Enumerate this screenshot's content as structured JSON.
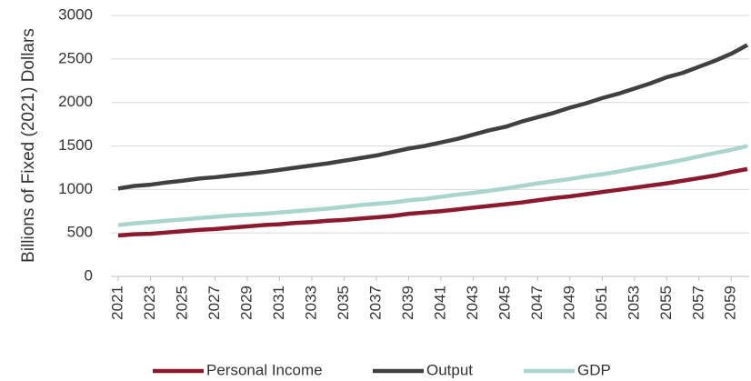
{
  "chart_data": {
    "type": "line",
    "y_label": "Billions of Fixed (2021) Dollars",
    "x": [
      2021,
      2022,
      2023,
      2024,
      2025,
      2026,
      2027,
      2028,
      2029,
      2030,
      2031,
      2032,
      2033,
      2034,
      2035,
      2036,
      2037,
      2038,
      2039,
      2040,
      2041,
      2042,
      2043,
      2044,
      2045,
      2046,
      2047,
      2048,
      2049,
      2050,
      2051,
      2052,
      2053,
      2054,
      2055,
      2056,
      2057,
      2058,
      2059,
      2060
    ],
    "xlim": [
      2021,
      2060
    ],
    "xticks": [
      2021,
      2023,
      2025,
      2027,
      2029,
      2031,
      2033,
      2035,
      2037,
      2039,
      2041,
      2043,
      2045,
      2047,
      2049,
      2051,
      2053,
      2055,
      2057,
      2059
    ],
    "ylim": [
      0,
      3000
    ],
    "yticks": [
      0,
      500,
      1000,
      1500,
      2000,
      2500,
      3000
    ],
    "grid": true,
    "legend": "bottom",
    "series": [
      {
        "name": "Personal Income",
        "color": "#8b1a2e",
        "values": [
          470,
          485,
          490,
          505,
          520,
          535,
          545,
          560,
          575,
          590,
          600,
          615,
          625,
          640,
          650,
          665,
          680,
          695,
          720,
          735,
          750,
          770,
          790,
          810,
          830,
          850,
          875,
          900,
          920,
          945,
          970,
          995,
          1020,
          1045,
          1070,
          1100,
          1130,
          1160,
          1200,
          1235
        ]
      },
      {
        "name": "Output",
        "color": "#404040",
        "values": [
          1010,
          1040,
          1055,
          1080,
          1100,
          1125,
          1140,
          1160,
          1180,
          1200,
          1225,
          1250,
          1275,
          1300,
          1330,
          1360,
          1390,
          1430,
          1470,
          1500,
          1540,
          1580,
          1630,
          1680,
          1720,
          1780,
          1830,
          1880,
          1940,
          1990,
          2050,
          2100,
          2160,
          2220,
          2290,
          2340,
          2410,
          2480,
          2560,
          2660
        ]
      },
      {
        "name": "GDP",
        "color": "#a8d5cc",
        "values": [
          590,
          610,
          625,
          640,
          655,
          670,
          685,
          700,
          710,
          720,
          735,
          750,
          765,
          780,
          800,
          820,
          835,
          850,
          875,
          890,
          915,
          940,
          960,
          985,
          1010,
          1040,
          1070,
          1095,
          1120,
          1150,
          1175,
          1205,
          1240,
          1270,
          1305,
          1340,
          1380,
          1420,
          1455,
          1500
        ]
      }
    ]
  }
}
